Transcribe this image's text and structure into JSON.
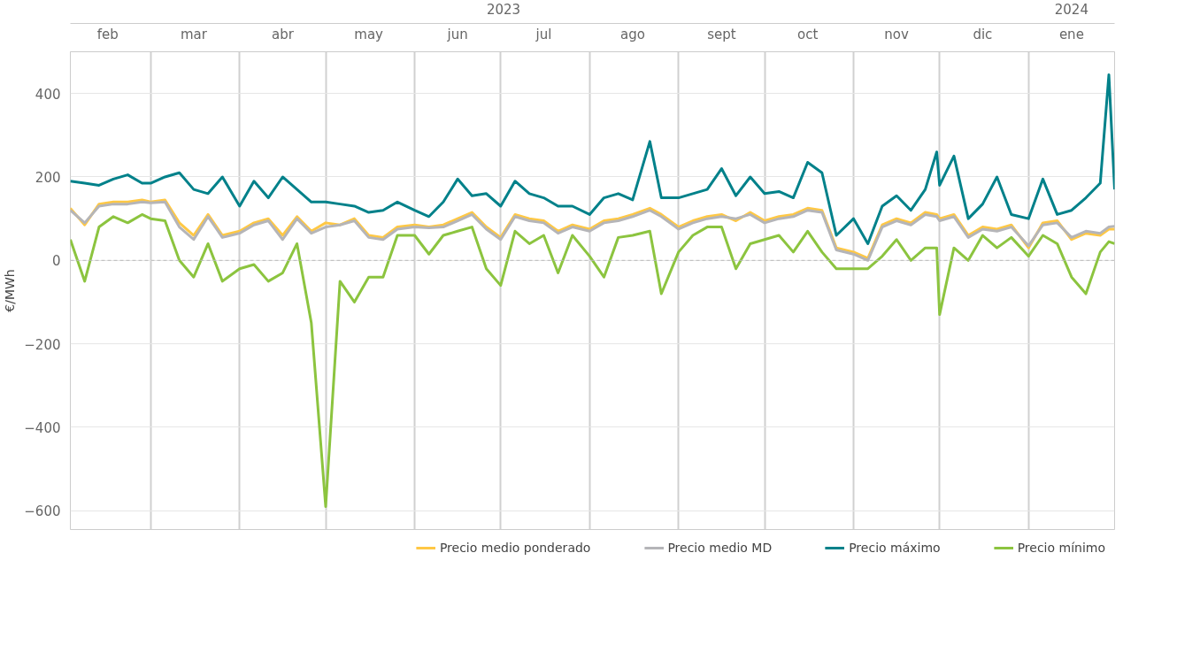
{
  "chart_data": {
    "type": "line",
    "ylabel": "€/MWh",
    "x": [
      "2023-02-01",
      "2023-02-06",
      "2023-02-11",
      "2023-02-16",
      "2023-02-21",
      "2023-02-26",
      "2023-03-01",
      "2023-03-06",
      "2023-03-11",
      "2023-03-16",
      "2023-03-21",
      "2023-03-26",
      "2023-04-01",
      "2023-04-06",
      "2023-04-11",
      "2023-04-16",
      "2023-04-21",
      "2023-04-26",
      "2023-05-01",
      "2023-05-06",
      "2023-05-11",
      "2023-05-16",
      "2023-05-21",
      "2023-05-26",
      "2023-06-01",
      "2023-06-06",
      "2023-06-11",
      "2023-06-16",
      "2023-06-21",
      "2023-06-26",
      "2023-07-01",
      "2023-07-06",
      "2023-07-11",
      "2023-07-16",
      "2023-07-21",
      "2023-07-26",
      "2023-08-01",
      "2023-08-06",
      "2023-08-11",
      "2023-08-16",
      "2023-08-22",
      "2023-08-26",
      "2023-09-01",
      "2023-09-06",
      "2023-09-11",
      "2023-09-16",
      "2023-09-21",
      "2023-09-26",
      "2023-10-01",
      "2023-10-06",
      "2023-10-11",
      "2023-10-16",
      "2023-10-21",
      "2023-10-26",
      "2023-11-01",
      "2023-11-06",
      "2023-11-11",
      "2023-11-16",
      "2023-11-21",
      "2023-11-26",
      "2023-11-30",
      "2023-12-01",
      "2023-12-06",
      "2023-12-11",
      "2023-12-16",
      "2023-12-21",
      "2023-12-26",
      "2024-01-01",
      "2024-01-06",
      "2024-01-11",
      "2024-01-16",
      "2024-01-21",
      "2024-01-26",
      "2024-01-29",
      "2024-01-31"
    ],
    "series": [
      {
        "name": "Precio medio ponderado",
        "color": "#ffc845",
        "values": [
          125,
          85,
          135,
          140,
          140,
          145,
          140,
          145,
          90,
          60,
          110,
          60,
          70,
          90,
          100,
          60,
          105,
          70,
          90,
          85,
          100,
          60,
          55,
          80,
          85,
          80,
          85,
          100,
          115,
          80,
          55,
          110,
          100,
          95,
          70,
          85,
          75,
          95,
          100,
          110,
          125,
          110,
          80,
          95,
          105,
          110,
          95,
          115,
          95,
          105,
          110,
          125,
          120,
          30,
          20,
          5,
          85,
          100,
          90,
          115,
          110,
          100,
          110,
          60,
          80,
          75,
          85,
          30,
          90,
          95,
          50,
          65,
          60,
          75,
          75
        ]
      },
      {
        "name": "Precio medio MD",
        "color": "#b5b5b8",
        "values": [
          120,
          90,
          130,
          135,
          135,
          140,
          138,
          140,
          80,
          50,
          105,
          55,
          65,
          85,
          95,
          50,
          100,
          65,
          80,
          85,
          95,
          55,
          50,
          75,
          80,
          78,
          80,
          95,
          110,
          75,
          50,
          105,
          95,
          90,
          65,
          80,
          70,
          90,
          95,
          105,
          120,
          105,
          75,
          90,
          100,
          105,
          100,
          110,
          90,
          100,
          105,
          120,
          115,
          25,
          15,
          0,
          80,
          95,
          85,
          110,
          105,
          95,
          105,
          55,
          75,
          70,
          80,
          35,
          85,
          90,
          55,
          70,
          65,
          80,
          82
        ]
      },
      {
        "name": "Precio máximo",
        "color": "#00818a",
        "values": [
          190,
          185,
          180,
          195,
          205,
          185,
          185,
          200,
          210,
          170,
          160,
          200,
          130,
          190,
          150,
          200,
          170,
          140,
          140,
          135,
          130,
          115,
          120,
          140,
          120,
          105,
          140,
          195,
          155,
          160,
          130,
          190,
          160,
          150,
          130,
          130,
          110,
          150,
          160,
          145,
          285,
          150,
          150,
          160,
          170,
          220,
          155,
          200,
          160,
          165,
          150,
          235,
          210,
          60,
          100,
          40,
          130,
          155,
          120,
          170,
          260,
          180,
          250,
          100,
          135,
          200,
          110,
          100,
          195,
          110,
          120,
          150,
          185,
          445,
          170
        ]
      },
      {
        "name": "Precio mínimo",
        "color": "#8cc43f",
        "values": [
          50,
          -50,
          80,
          105,
          90,
          110,
          100,
          95,
          0,
          -40,
          40,
          -50,
          -20,
          -10,
          -50,
          -30,
          40,
          -150,
          -590,
          -50,
          -100,
          -40,
          -40,
          60,
          60,
          15,
          60,
          70,
          80,
          -20,
          -60,
          70,
          40,
          60,
          -30,
          60,
          10,
          -40,
          55,
          60,
          70,
          -80,
          20,
          60,
          80,
          80,
          -20,
          40,
          50,
          60,
          20,
          70,
          20,
          -20,
          -20,
          -20,
          10,
          50,
          0,
          30,
          30,
          -130,
          30,
          0,
          60,
          30,
          55,
          10,
          60,
          40,
          -40,
          -80,
          20,
          45,
          40
        ]
      }
    ],
    "xlim": [
      "2023-02-01",
      "2024-01-31"
    ],
    "xticks": [
      {
        "value": "2023-02-01",
        "label": null
      },
      {
        "value": "2023-02-14",
        "label": "feb"
      },
      {
        "value": "2023-03-01",
        "label": null
      },
      {
        "value": "2023-03-16",
        "label": "mar"
      },
      {
        "value": "2023-04-01",
        "label": null
      },
      {
        "value": "2023-04-16",
        "label": "abr"
      },
      {
        "value": "2023-05-01",
        "label": null
      },
      {
        "value": "2023-05-16",
        "label": "may"
      },
      {
        "value": "2023-06-01",
        "label": null
      },
      {
        "value": "2023-06-16",
        "label": "jun"
      },
      {
        "value": "2023-07-01",
        "label": null
      },
      {
        "value": "2023-07-16",
        "label": "jul"
      },
      {
        "value": "2023-08-01",
        "label": null
      },
      {
        "value": "2023-08-16",
        "label": "ago"
      },
      {
        "value": "2023-09-01",
        "label": null
      },
      {
        "value": "2023-09-16",
        "label": "sept"
      },
      {
        "value": "2023-10-01",
        "label": null
      },
      {
        "value": "2023-10-16",
        "label": "oct"
      },
      {
        "value": "2023-11-01",
        "label": null
      },
      {
        "value": "2023-11-16",
        "label": "nov"
      },
      {
        "value": "2023-12-01",
        "label": null
      },
      {
        "value": "2023-12-16",
        "label": "dic"
      },
      {
        "value": "2024-01-01",
        "label": null
      },
      {
        "value": "2024-01-16",
        "label": "ene"
      }
    ],
    "x2lim": [
      "2023-02-01",
      "2024-01-31"
    ],
    "x2ticks": [
      {
        "value": "2023-07-02",
        "label": "2023"
      },
      {
        "value": "2024-01-01",
        "label": null
      },
      {
        "value": "2024-01-16",
        "label": "2024"
      }
    ],
    "ylim": [
      -645,
      500
    ],
    "yticks": [
      -600,
      -400,
      -200,
      0,
      200,
      400
    ],
    "ref_lines": [
      {
        "axis": "y",
        "value": 0,
        "color": "#bbbbbb",
        "line_style": "dashed"
      }
    ],
    "grid": true,
    "legend": "bottom"
  }
}
